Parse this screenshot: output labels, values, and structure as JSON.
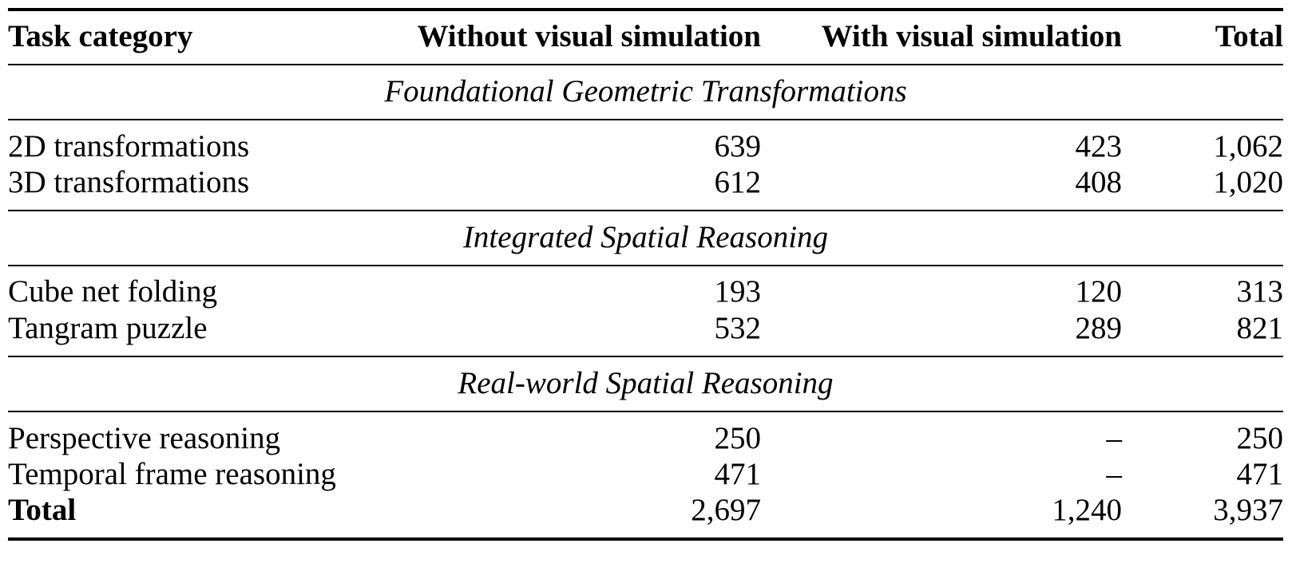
{
  "table": {
    "headers": [
      "Task category",
      "Without visual simulation",
      "With visual simulation",
      "Total"
    ],
    "sections": [
      {
        "title": "Foundational Geometric Transformations",
        "rows": [
          [
            "2D transformations",
            "639",
            "423",
            "1,062"
          ],
          [
            "3D transformations",
            "612",
            "408",
            "1,020"
          ]
        ]
      },
      {
        "title": "Integrated Spatial Reasoning",
        "rows": [
          [
            "Cube net folding",
            "193",
            "120",
            "313"
          ],
          [
            "Tangram puzzle",
            "532",
            "289",
            "821"
          ]
        ]
      },
      {
        "title": "Real-world Spatial Reasoning",
        "rows": [
          [
            "Perspective reasoning",
            "250",
            "–",
            "250"
          ],
          [
            "Temporal frame reasoning",
            "471",
            "–",
            "471"
          ]
        ]
      }
    ],
    "total_row": [
      "Total",
      "2,697",
      "1,240",
      "3,937"
    ]
  }
}
